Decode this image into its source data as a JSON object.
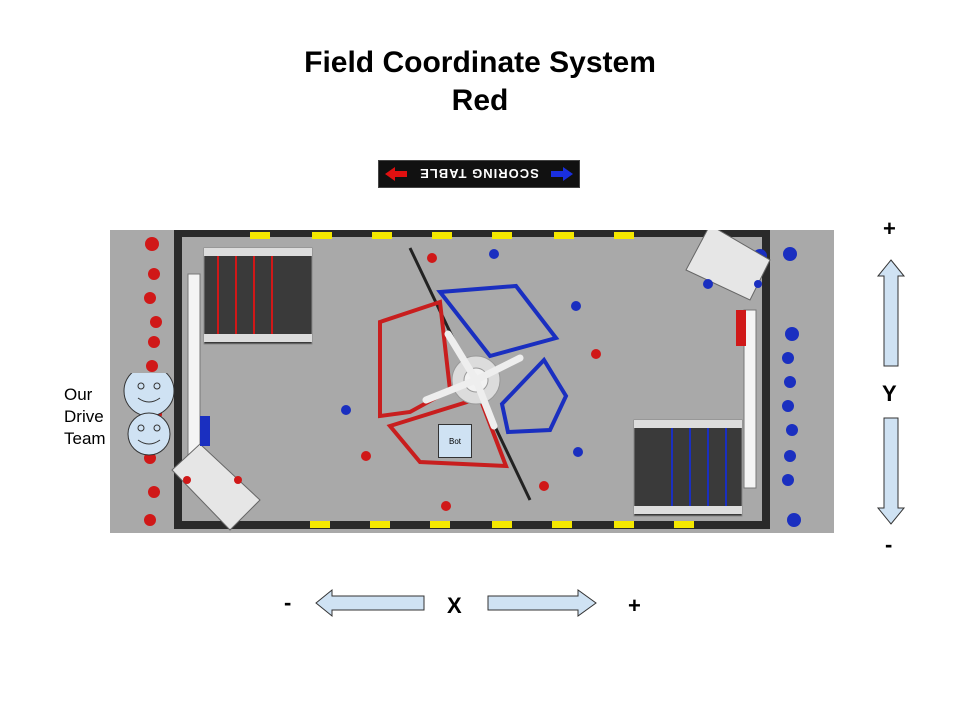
{
  "title": {
    "line1": "Field Coordinate System",
    "line2": "Red"
  },
  "scoring_table": {
    "label": "SCORING TABLE"
  },
  "bot": {
    "label": "Bot"
  },
  "drive_team": {
    "label": "Our Drive Team"
  },
  "y_axis": {
    "label": "Y",
    "plus": "+",
    "minus": "-"
  },
  "x_axis": {
    "label": "X",
    "plus": "+",
    "minus": "-"
  },
  "colors": {
    "red_alliance": "#d01818",
    "blue_alliance": "#1a2fc0",
    "field_floor": "#a9a9a9",
    "wall": "#2a2a2a",
    "arrow_fill": "#cfe2f3",
    "tape_yellow": "#f5e800"
  }
}
